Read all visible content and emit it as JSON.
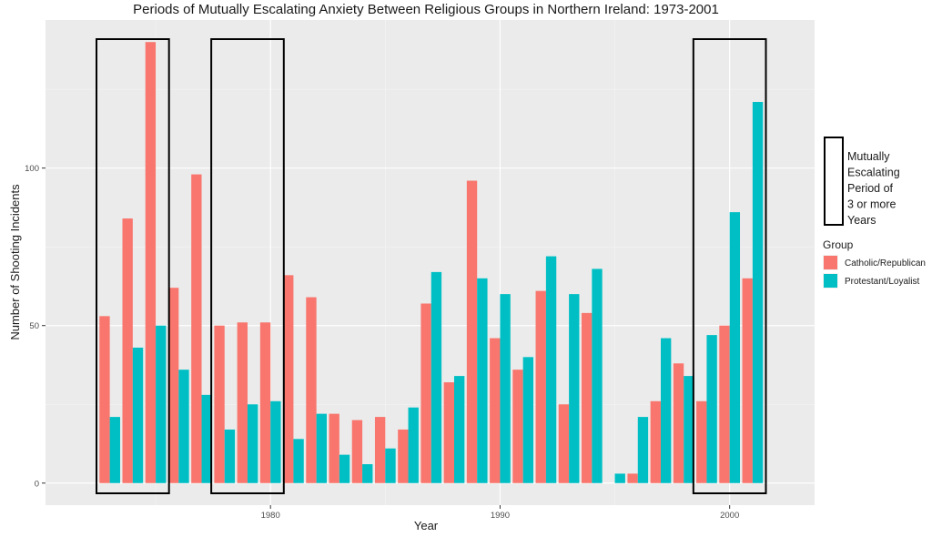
{
  "chart_data": {
    "type": "bar",
    "title": "Periods of Mutually Escalating Anxiety Between Religious Groups in Northern Ireland: 1973-2001",
    "xlabel": "Year",
    "ylabel": "Number of Shooting Incidents",
    "xlim": [
      1970.2,
      2003.7
    ],
    "ylim": [
      -7,
      147
    ],
    "xticks": [
      1980,
      1990,
      2000
    ],
    "yticks": [
      0,
      50,
      100
    ],
    "grid": true,
    "legend_placement": "right",
    "legend_title": "Group",
    "x": [
      1973,
      1974,
      1975,
      1976,
      1977,
      1978,
      1979,
      1980,
      1981,
      1982,
      1983,
      1984,
      1985,
      1986,
      1987,
      1988,
      1989,
      1990,
      1991,
      1992,
      1993,
      1994,
      1995,
      1996,
      1997,
      1998,
      1999,
      2000,
      2001
    ],
    "series": [
      {
        "name": "Catholic/Republican",
        "color": "#f8766d",
        "values": [
          53,
          84,
          140,
          62,
          98,
          50,
          51,
          51,
          66,
          59,
          22,
          20,
          21,
          17,
          57,
          32,
          96,
          46,
          36,
          61,
          25,
          54,
          null,
          3,
          26,
          38,
          26,
          50,
          65
        ]
      },
      {
        "name": "Protestant/Loyalist",
        "color": "#00bfc4",
        "values": [
          21,
          43,
          50,
          36,
          28,
          17,
          25,
          26,
          14,
          22,
          9,
          6,
          11,
          24,
          67,
          34,
          65,
          60,
          40,
          72,
          60,
          68,
          3,
          21,
          46,
          34,
          47,
          86,
          121
        ]
      }
    ],
    "highlight_periods": [
      [
        1973,
        1975
      ],
      [
        1978,
        1980
      ],
      [
        1999,
        2001
      ]
    ],
    "highlight_legend_label": "Mutually Escalating Period of 3 or more Years",
    "highlight_legend_lines": [
      "Mutually",
      "Escalating",
      "Period of",
      "3 or more",
      "Years"
    ]
  }
}
